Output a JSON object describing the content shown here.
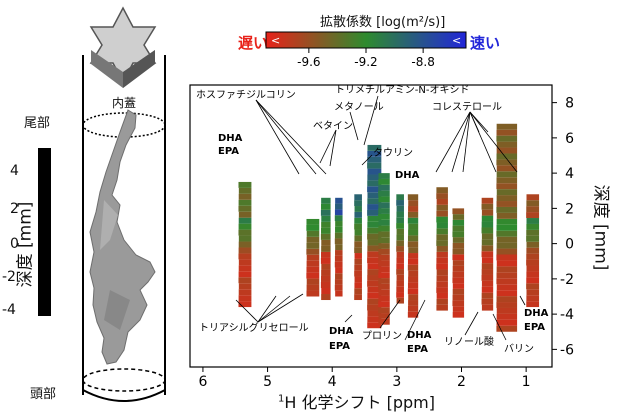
{
  "chart_data": {
    "type": "heatmap",
    "title": "拡散係数 [log(m²/s)]",
    "colorbar": {
      "slow_label": "遅い",
      "fast_label": "速い",
      "arrow_left": "<",
      "arrow_right": "<",
      "ticks": [
        -9.6,
        -9.2,
        -8.8
      ],
      "tick_labels": [
        "-9.6",
        "-9.2",
        "-8.8"
      ],
      "range": [
        -9.9,
        -8.5
      ],
      "colors": [
        "#e8221a",
        "#2e8b2e",
        "#2226d9"
      ]
    },
    "xlabel_sup": "1",
    "xlabel": "H 化学シフト [ppm]",
    "xlim": [
      6.2,
      0.6
    ],
    "x_ticks": [
      6,
      5,
      4,
      3,
      2,
      1
    ],
    "ylabel": "深度 [mm]",
    "ylim": [
      -7,
      9
    ],
    "y_ticks": [
      8,
      6,
      4,
      2,
      0,
      -2,
      -4,
      -6
    ],
    "bands": [
      {
        "ppm": 5.35,
        "ymin": -3.6,
        "ymax": 3.5,
        "diff": -9.4,
        "width": 0.2
      },
      {
        "ppm": 4.3,
        "ymin": -3.0,
        "ymax": 1.4,
        "diff": -9.3,
        "width": 0.2
      },
      {
        "ppm": 4.1,
        "ymin": -3.2,
        "ymax": 2.6,
        "diff": -9.1,
        "width": 0.15
      },
      {
        "ppm": 3.9,
        "ymin": -3.0,
        "ymax": 2.6,
        "diff": -8.8,
        "width": 0.12
      },
      {
        "ppm": 3.6,
        "ymin": -3.2,
        "ymax": 2.8,
        "diff": -9.0,
        "width": 0.12
      },
      {
        "ppm": 3.35,
        "ymin": -4.8,
        "ymax": 5.6,
        "diff": -8.9,
        "width": 0.22
      },
      {
        "ppm": 3.2,
        "ymin": -4.6,
        "ymax": 4.0,
        "diff": -9.1,
        "width": 0.18
      },
      {
        "ppm": 2.95,
        "ymin": -3.4,
        "ymax": 2.8,
        "diff": -9.0,
        "width": 0.12
      },
      {
        "ppm": 2.75,
        "ymin": -4.2,
        "ymax": 2.8,
        "diff": -9.6,
        "width": 0.16
      },
      {
        "ppm": 2.3,
        "ymin": -3.8,
        "ymax": 3.2,
        "diff": -9.6,
        "width": 0.18
      },
      {
        "ppm": 2.05,
        "ymin": -4.2,
        "ymax": 2.0,
        "diff": -9.5,
        "width": 0.18
      },
      {
        "ppm": 1.6,
        "ymin": -3.8,
        "ymax": 2.6,
        "diff": -9.6,
        "width": 0.18
      },
      {
        "ppm": 1.3,
        "ymin": -5.0,
        "ymax": 6.8,
        "diff": -9.5,
        "width": 0.32
      },
      {
        "ppm": 0.9,
        "ymin": -3.6,
        "ymax": 2.8,
        "diff": -9.6,
        "width": 0.2
      }
    ],
    "annotations": [
      {
        "id": "phosphatidylcholine",
        "text": "ホスファチジルコリン"
      },
      {
        "id": "trimethylamine",
        "text": "トリメチルアミン-N-オキシド"
      },
      {
        "id": "methanol",
        "text": "メタノール"
      },
      {
        "id": "betaine",
        "text": "ベタイン"
      },
      {
        "id": "taurine",
        "text": "タウリン"
      },
      {
        "id": "cholesterol",
        "text": "コレステロール"
      },
      {
        "id": "dha_epa_left_1",
        "text": "DHA"
      },
      {
        "id": "dha_epa_left_2",
        "text": "EPA"
      },
      {
        "id": "dha_mid",
        "text": "DHA"
      },
      {
        "id": "triacylglycerol",
        "text": "トリアシルグリセロール"
      },
      {
        "id": "dha_epa_low_1",
        "text": "DHA"
      },
      {
        "id": "dha_epa_low_2",
        "text": "EPA"
      },
      {
        "id": "proline",
        "text": "プロリン"
      },
      {
        "id": "dha_epa_low2_1",
        "text": "DHA"
      },
      {
        "id": "dha_epa_low2_2",
        "text": "EPA"
      },
      {
        "id": "linoleic",
        "text": "リノール酸"
      },
      {
        "id": "valine",
        "text": "バリン"
      },
      {
        "id": "dha_epa_right_1",
        "text": "DHA"
      },
      {
        "id": "dha_epa_right_2",
        "text": "EPA"
      }
    ]
  },
  "specimen": {
    "tail_label": "尾部",
    "head_label": "頭部",
    "inner_cap_label": "内蓋",
    "depth_label": "深度 [mm]",
    "depth_ticks": [
      "4",
      "2",
      "0",
      "-2",
      "-4"
    ]
  }
}
